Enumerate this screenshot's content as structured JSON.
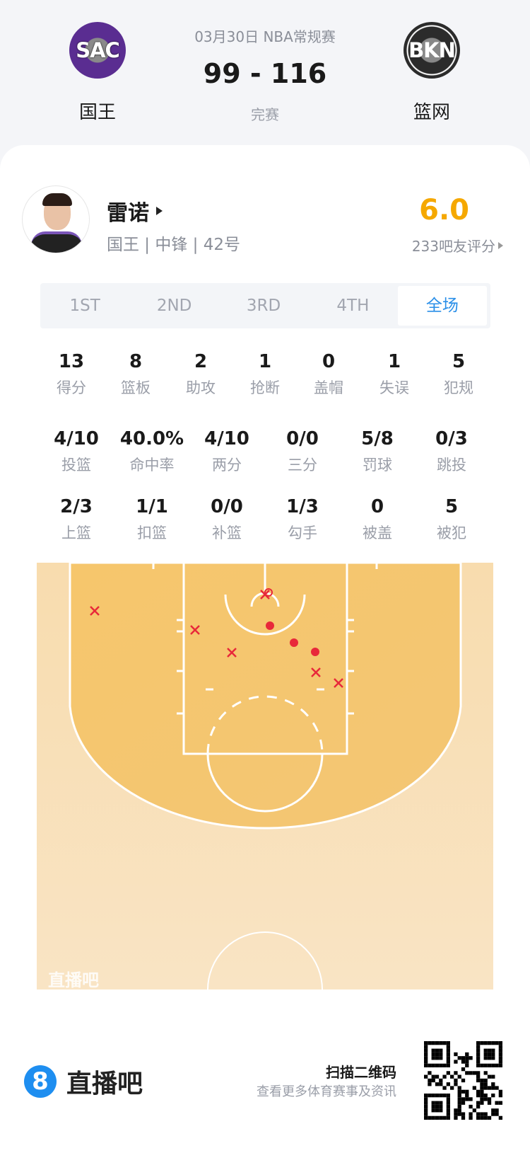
{
  "header": {
    "date_league": "03月30日 NBA常规赛",
    "score": "99 - 116",
    "status": "完赛",
    "home": {
      "abbr": "SAC",
      "name": "国王",
      "color": "#5a2d91"
    },
    "away": {
      "abbr": "BKN",
      "name": "篮网",
      "color": "#222222"
    }
  },
  "player": {
    "name": "雷诺",
    "info": "国王 | 中锋 | 42号",
    "rating": "6.0",
    "rating_count": "233吧友评分",
    "rating_color": "#f5a800"
  },
  "tabs": [
    {
      "label": "1ST"
    },
    {
      "label": "2ND"
    },
    {
      "label": "3RD"
    },
    {
      "label": "4TH"
    },
    {
      "label": "全场",
      "active": true
    }
  ],
  "stats_row1": [
    {
      "v": "13",
      "l": "得分"
    },
    {
      "v": "8",
      "l": "篮板"
    },
    {
      "v": "2",
      "l": "助攻"
    },
    {
      "v": "1",
      "l": "抢断"
    },
    {
      "v": "0",
      "l": "盖帽"
    },
    {
      "v": "1",
      "l": "失误"
    },
    {
      "v": "5",
      "l": "犯规"
    }
  ],
  "stats_row2": [
    {
      "v": "4/10",
      "l": "投篮"
    },
    {
      "v": "40.0%",
      "l": "命中率"
    },
    {
      "v": "4/10",
      "l": "两分"
    },
    {
      "v": "0/0",
      "l": "三分"
    },
    {
      "v": "5/8",
      "l": "罚球"
    },
    {
      "v": "0/3",
      "l": "跳投"
    }
  ],
  "stats_row3": [
    {
      "v": "2/3",
      "l": "上篮"
    },
    {
      "v": "1/1",
      "l": "扣篮"
    },
    {
      "v": "0/0",
      "l": "补篮"
    },
    {
      "v": "1/3",
      "l": "勾手"
    },
    {
      "v": "0",
      "l": "被盖"
    },
    {
      "v": "5",
      "l": "被犯"
    }
  ],
  "shot_chart": {
    "watermark": "直播吧",
    "made_color": "#e8283a",
    "shots": [
      {
        "result": "miss"
      },
      {
        "result": "miss"
      },
      {
        "result": "miss"
      },
      {
        "result": "miss"
      },
      {
        "result": "miss"
      },
      {
        "result": "miss"
      },
      {
        "result": "made"
      },
      {
        "result": "made"
      },
      {
        "result": "made"
      },
      {
        "result": "made"
      }
    ]
  },
  "footer": {
    "brand": "直播吧",
    "brand_icon": "8",
    "scan_title": "扫描二维码",
    "scan_sub": "查看更多体育赛事及资讯"
  }
}
